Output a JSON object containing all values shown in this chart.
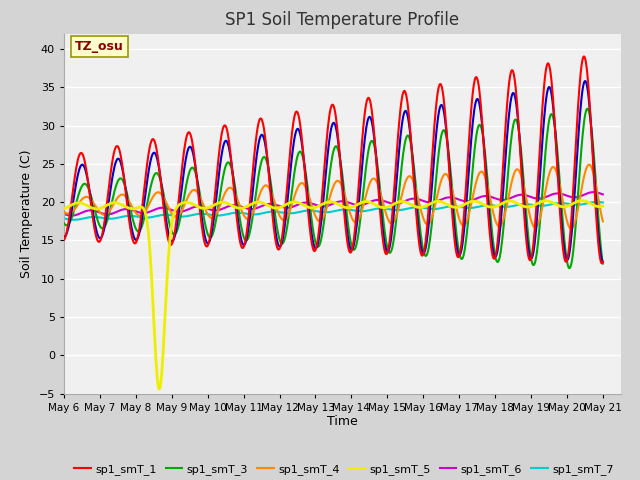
{
  "title": "SP1 Soil Temperature Profile",
  "xlabel": "Time",
  "ylabel": "Soil Temperature (C)",
  "ylim": [
    -5,
    42
  ],
  "xlim": [
    0,
    15.5
  ],
  "fig_bg_color": "#d4d4d4",
  "plot_bg_color": "#f0f0f0",
  "grid_color": "#cccccc",
  "annotation_text": "TZ_osu",
  "annotation_color": "#8b0000",
  "annotation_bg": "#ffffcc",
  "annotation_edge": "#999900",
  "series_colors": {
    "sp1_smT_1": "#ff0000",
    "sp1_smT_2": "#0000cc",
    "sp1_smT_3": "#00aa00",
    "sp1_smT_4": "#ff8800",
    "sp1_smT_5": "#eeee00",
    "sp1_smT_6": "#cc00cc",
    "sp1_smT_7": "#00cccc"
  },
  "x_tick_labels": [
    "May 6",
    "May 7",
    "May 8",
    "May 9",
    "May 10",
    "May 11",
    "May 12",
    "May 13",
    "May 14",
    "May 15",
    "May 16",
    "May 17",
    "May 18",
    "May 19",
    "May 20",
    "May 21"
  ],
  "x_tick_positions": [
    0,
    1,
    2,
    3,
    4,
    5,
    6,
    7,
    8,
    9,
    10,
    11,
    12,
    13,
    14,
    15
  ]
}
